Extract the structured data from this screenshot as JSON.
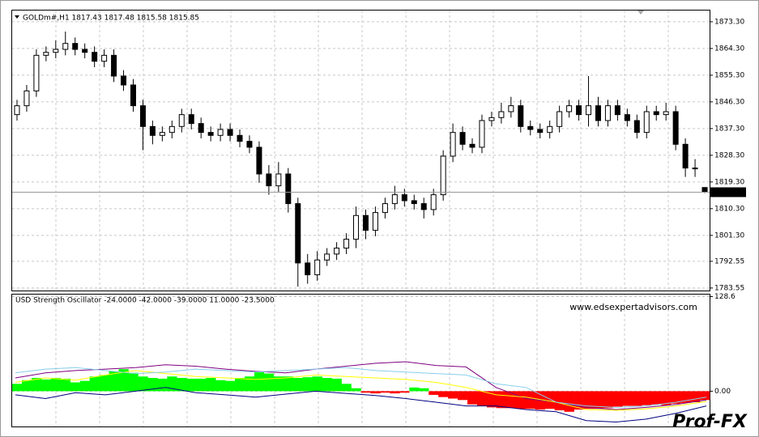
{
  "chart_data": [
    {
      "type": "candlestick",
      "title": "GOLDm#,H1  1817.43 1817.48 1815.58 1815.85",
      "open": [
        1842,
        1845,
        1850,
        1862,
        1863,
        1864,
        1866,
        1864,
        1863,
        1860,
        1862,
        1855,
        1852,
        1845,
        1838,
        1835,
        1836,
        1838,
        1842,
        1839,
        1836,
        1835,
        1837,
        1835,
        1833,
        1831,
        1822,
        1818,
        1822,
        1812,
        1792,
        1788,
        1793,
        1795,
        1797,
        1800,
        1808,
        1803,
        1809,
        1812,
        1815,
        1813,
        1812,
        1810,
        1815,
        1828,
        1836,
        1832,
        1831,
        1840,
        1841,
        1843,
        1845,
        1838,
        1837,
        1836,
        1838,
        1843,
        1845,
        1842,
        1845,
        1840,
        1845,
        1842,
        1840,
        1836,
        1843,
        1842,
        1843,
        1832,
        1824,
        1817.43
      ],
      "high": [
        1847,
        1852,
        1864,
        1865,
        1867,
        1870,
        1868,
        1866,
        1865,
        1864,
        1864,
        1857,
        1854,
        1847,
        1840,
        1838,
        1840,
        1844,
        1844,
        1841,
        1838,
        1839,
        1839,
        1837,
        1835,
        1833,
        1825,
        1826,
        1824,
        1814,
        1795,
        1796,
        1797,
        1799,
        1802,
        1811,
        1810,
        1811,
        1814,
        1818,
        1817,
        1815,
        1814,
        1817,
        1830,
        1839,
        1838,
        1834,
        1842,
        1843,
        1846,
        1848,
        1847,
        1840,
        1839,
        1840,
        1845,
        1847,
        1847,
        1855,
        1848,
        1847,
        1847,
        1844,
        1842,
        1845,
        1845,
        1846,
        1845,
        1834,
        1827,
        1817.48
      ],
      "low": [
        1840,
        1843,
        1848,
        1860,
        1861,
        1862,
        1862,
        1861,
        1858,
        1858,
        1853,
        1850,
        1843,
        1830,
        1832,
        1833,
        1834,
        1836,
        1837,
        1834,
        1833,
        1833,
        1833,
        1831,
        1829,
        1819,
        1815,
        1816,
        1809,
        1784,
        1785,
        1786,
        1791,
        1793,
        1795,
        1797,
        1800,
        1801,
        1807,
        1810,
        1811,
        1810,
        1807,
        1808,
        1813,
        1826,
        1830,
        1829,
        1829,
        1838,
        1839,
        1841,
        1836,
        1835,
        1834,
        1834,
        1836,
        1841,
        1840,
        1838,
        1838,
        1838,
        1840,
        1838,
        1834,
        1834,
        1840,
        1840,
        1830,
        1821,
        1821,
        1815.58
      ],
      "close": [
        1845,
        1850,
        1862,
        1863,
        1864,
        1866,
        1864,
        1863,
        1860,
        1862,
        1855,
        1852,
        1845,
        1838,
        1835,
        1836,
        1838,
        1842,
        1839,
        1836,
        1835,
        1837,
        1835,
        1833,
        1831,
        1822,
        1818,
        1822,
        1812,
        1792,
        1788,
        1793,
        1795,
        1797,
        1800,
        1808,
        1803,
        1809,
        1812,
        1815,
        1813,
        1812,
        1810,
        1815,
        1828,
        1836,
        1832,
        1831,
        1840,
        1841,
        1843,
        1845,
        1838,
        1837,
        1836,
        1838,
        1843,
        1845,
        1842,
        1845,
        1840,
        1845,
        1842,
        1840,
        1836,
        1843,
        1842,
        1843,
        1832,
        1824,
        1824,
        1815.85
      ],
      "up_color": "#ffffff",
      "down_color": "#000000",
      "current_price": 1815.85,
      "ylim": [
        1782.7,
        1877.1
      ],
      "yticks": [
        {
          "value": 1873.3,
          "label": "1873.30"
        },
        {
          "value": 1864.3,
          "label": "1864.30"
        },
        {
          "value": 1855.3,
          "label": "1855.30"
        },
        {
          "value": 1846.3,
          "label": "1846.30"
        },
        {
          "value": 1837.3,
          "label": "1837.30"
        },
        {
          "value": 1828.3,
          "label": "1828.30"
        },
        {
          "value": 1819.3,
          "label": "1819.30"
        },
        {
          "value": 1810.3,
          "label": "1810.30"
        },
        {
          "value": 1801.3,
          "label": "1801.30"
        },
        {
          "value": 1792.55,
          "label": "1792.55"
        },
        {
          "value": 1783.55,
          "label": "1783.55"
        }
      ],
      "grid": true
    },
    {
      "type": "oscillator",
      "title": "USD Strength Oscillator -24.0000 -42.0000 -39.0000 11.0000 -23.5000",
      "annotation": "www.edsexpertadvisors.com",
      "logo": "Prof-FX",
      "values": [
        10,
        15,
        18,
        16,
        18,
        17,
        12,
        14,
        20,
        22,
        27,
        30,
        25,
        20,
        18,
        17,
        20,
        18,
        17,
        17,
        18,
        15,
        14,
        18,
        20,
        26,
        24,
        20,
        20,
        18,
        19,
        20,
        18,
        17,
        10,
        4,
        -2,
        -3,
        -2,
        -3,
        -2,
        5,
        4,
        -5,
        -8,
        -10,
        -12,
        -18,
        -20,
        -22,
        -23,
        -23,
        -24,
        -24,
        -25,
        -24,
        -26,
        -28,
        -25,
        -24,
        -24,
        -23,
        -21,
        -20,
        -20,
        -19,
        -18,
        -19,
        -17,
        -16,
        -15,
        -12
      ],
      "positive_color": "#00ff00",
      "negative_color": "#ff0000",
      "lines": [
        {
          "color": "#800080",
          "values": [
            18,
            25,
            28,
            30,
            32,
            36,
            34,
            30,
            27,
            25,
            30,
            34,
            38,
            40,
            35,
            33,
            5,
            -10,
            -15,
            -22,
            -25,
            -22,
            -18,
            -12
          ]
        },
        {
          "color": "#ffff00",
          "values": [
            12,
            18,
            15,
            22,
            28,
            24,
            20,
            18,
            16,
            18,
            22,
            20,
            18,
            16,
            12,
            5,
            -5,
            -8,
            -15,
            -25,
            -26,
            -24,
            -20,
            -14
          ]
        },
        {
          "color": "#87ceeb",
          "values": [
            25,
            30,
            32,
            28,
            24,
            26,
            30,
            28,
            26,
            28,
            30,
            32,
            28,
            26,
            24,
            22,
            10,
            5,
            -15,
            -20,
            -22,
            -20,
            -15,
            -8
          ]
        },
        {
          "color": "#000080",
          "values": [
            -5,
            -10,
            -2,
            -5,
            0,
            5,
            -2,
            -5,
            -8,
            -4,
            0,
            -3,
            -6,
            -10,
            -15,
            -20,
            -20,
            -25,
            -28,
            -40,
            -42,
            -38,
            -30,
            -20
          ]
        }
      ],
      "ylim": [
        -48,
        131.4
      ],
      "yticks": [
        128.6,
        {
          "value": 0,
          "label": "0.00"
        }
      ],
      "grid": true
    }
  ]
}
